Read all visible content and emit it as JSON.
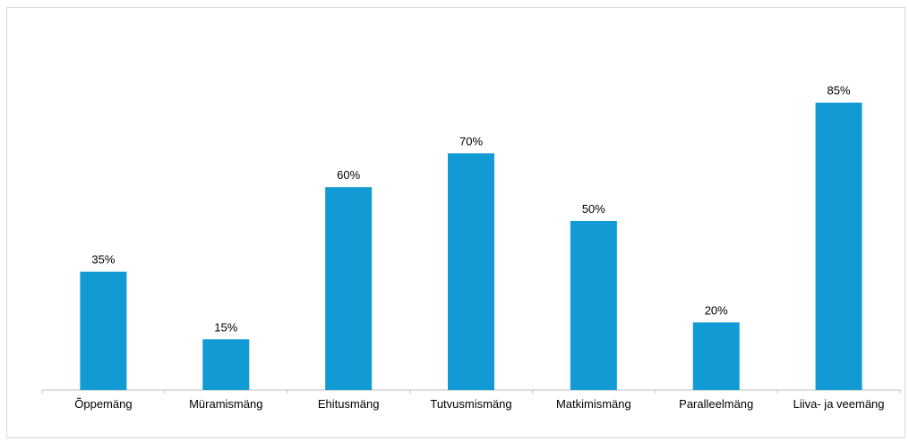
{
  "chart_data": {
    "type": "bar",
    "categories": [
      "Õppemäng",
      "Müramismäng",
      "Ehitusmäng",
      "Tutvusmismäng",
      "Matkimismäng",
      "Paralleelmäng",
      "Liiva- ja veemäng"
    ],
    "values": [
      35,
      15,
      60,
      70,
      50,
      20,
      85
    ],
    "value_labels": [
      "35%",
      "15%",
      "60%",
      "70%",
      "50%",
      "20%",
      "85%"
    ],
    "unit": "%",
    "title": "",
    "xlabel": "",
    "ylabel": "",
    "ylim": [
      0,
      100
    ],
    "grid": false,
    "legend": "none",
    "bar_color": "#129ad5",
    "axis_color": "#bfbfbf"
  }
}
